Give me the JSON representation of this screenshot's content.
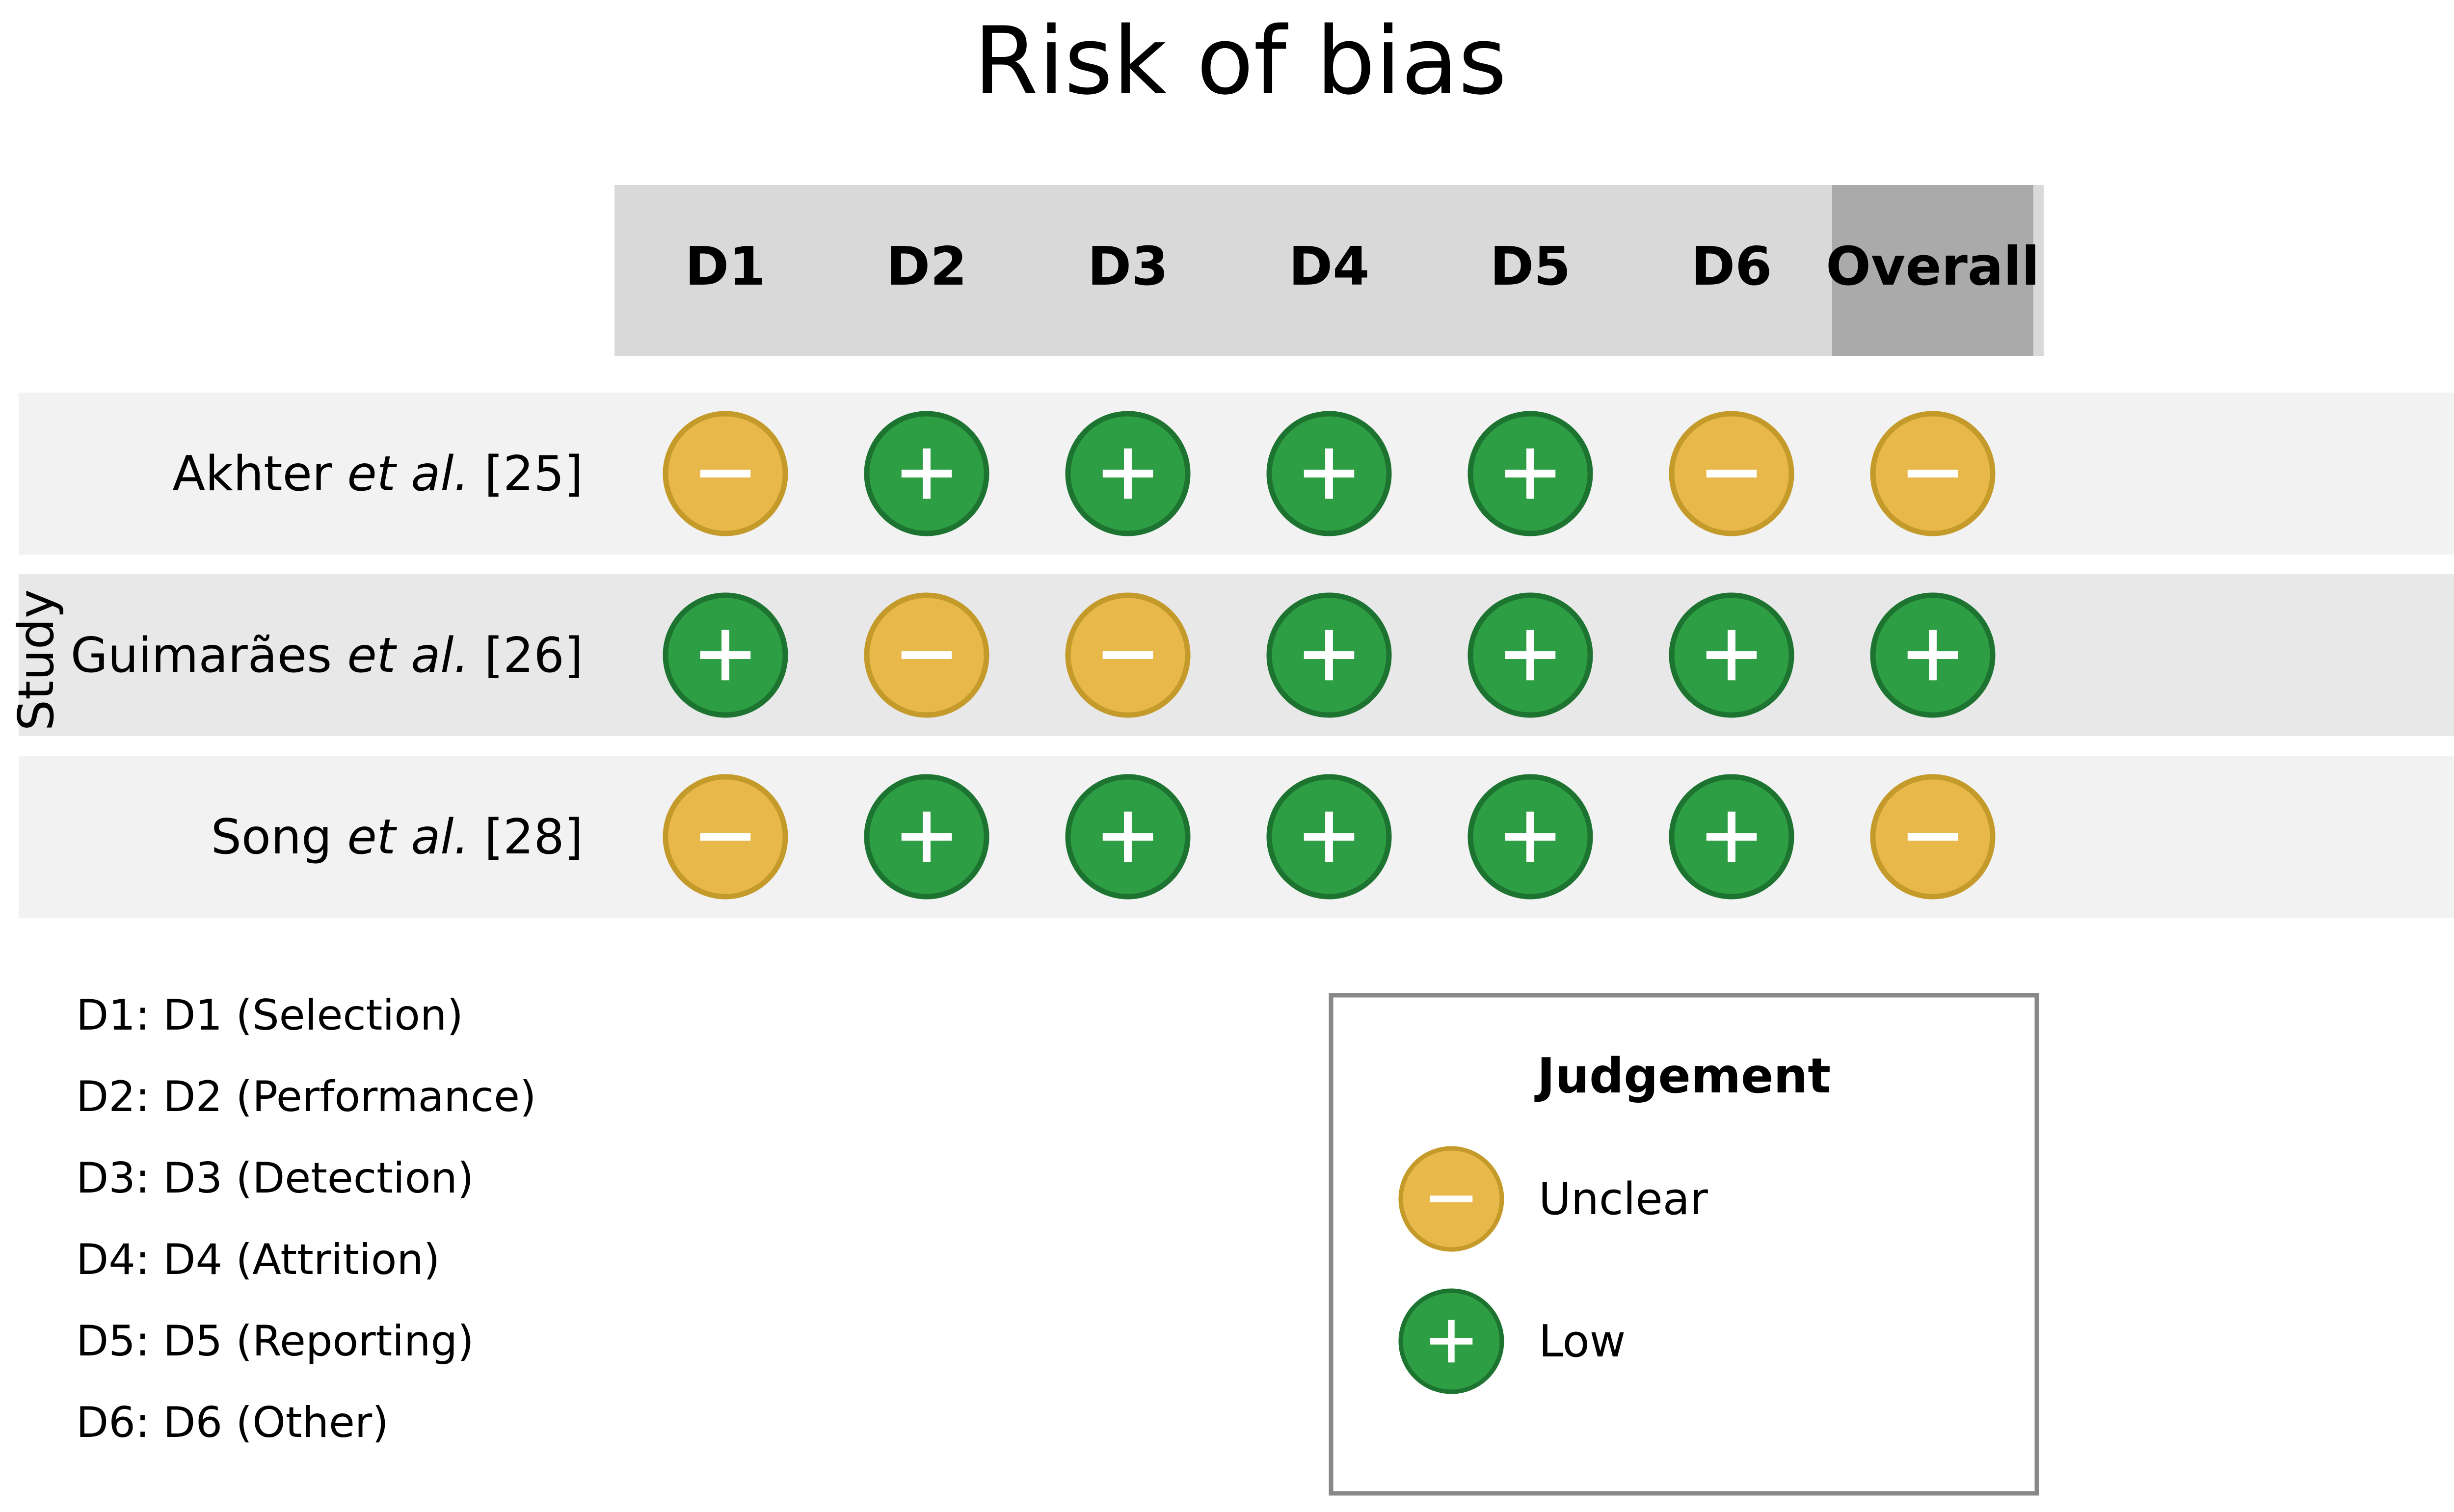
{
  "chart_data": {
    "type": "table",
    "title": "Risk of bias",
    "ylabel": "Study",
    "domains": [
      "D1",
      "D2",
      "D3",
      "D4",
      "D5",
      "D6",
      "Overall"
    ],
    "studies": [
      {
        "name": "Akhter",
        "etal": "et al.",
        "ref": "[25]",
        "judgements": [
          "Unclear",
          "Low",
          "Low",
          "Low",
          "Low",
          "Unclear",
          "Unclear"
        ]
      },
      {
        "name": "Guimarães",
        "etal": "et al.",
        "ref": "[26]",
        "judgements": [
          "Low",
          "Unclear",
          "Unclear",
          "Low",
          "Low",
          "Low",
          "Low"
        ]
      },
      {
        "name": "Song",
        "etal": "et al.",
        "ref": "[28]",
        "judgements": [
          "Unclear",
          "Low",
          "Low",
          "Low",
          "Low",
          "Low",
          "Unclear"
        ]
      }
    ],
    "domain_descriptions": [
      "D1: D1 (Selection)",
      "D2: D2 (Performance)",
      "D3: D3 (Detection)",
      "D4: D4 (Attrition)",
      "D5: D5 (Reporting)",
      "D6: D6 (Other)"
    ],
    "legend": {
      "title": "Judgement",
      "entries": [
        {
          "label": "Unclear",
          "symbol": "minus-icon",
          "fill": "#E8B84A",
          "stroke": "#C49A2A"
        },
        {
          "label": "Low",
          "symbol": "plus-icon",
          "fill": "#2E9E44",
          "stroke": "#1D7430"
        }
      ]
    },
    "colors": {
      "header_band": "#D9D9D9",
      "overall_header": "#AAAAAA",
      "row_light": "#F2F2F2",
      "row_dark": "#E8E8E8",
      "legend_border": "#888888"
    }
  }
}
